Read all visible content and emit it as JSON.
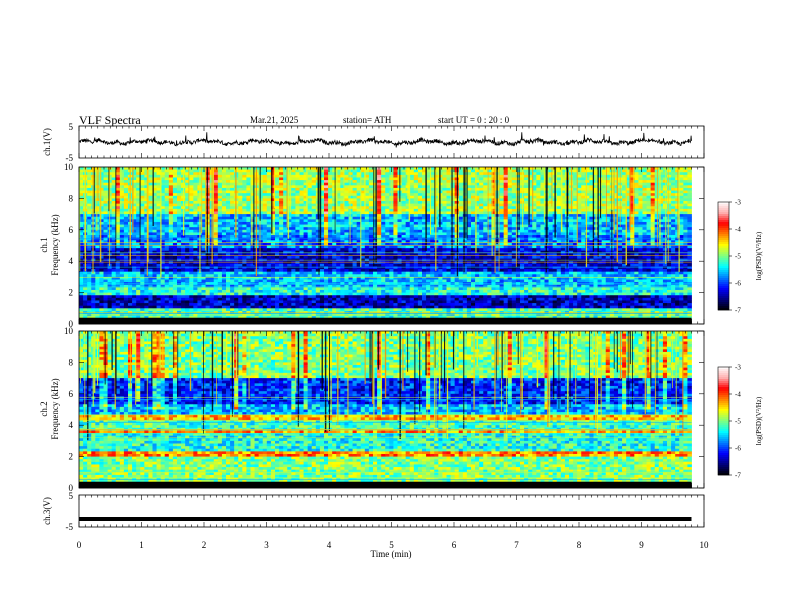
{
  "header": {
    "title": "VLF  Spectra",
    "date": "Mar.21, 2025",
    "station": "station= ATH",
    "start": "start  UT  =    0  : 20 : 0"
  },
  "chart_data": [
    {
      "type": "line",
      "panel": "ch1-waveform",
      "ylabel": "ch.1(V)",
      "yticks": [
        "5",
        "-5"
      ],
      "ylim": [
        -5,
        5
      ],
      "xlim": [
        0,
        10
      ],
      "note_series": "noisy waveform around ~0 V with amplitude ~±1 V, data from 0 to ~9.8 min"
    },
    {
      "type": "heatmap",
      "panel": "ch1-spectrogram",
      "ylabel": "ch.1\nFrequency  (kHz)",
      "ylabel_lines": [
        "ch.1",
        "Frequency  (kHz)"
      ],
      "yticks": [
        "0",
        "2",
        "4",
        "6",
        "8",
        "10"
      ],
      "ylim": [
        0,
        10
      ],
      "xlim": [
        0,
        10
      ],
      "colorbar": {
        "label": "log(PSD)(V²/Hz)",
        "ticks": [
          "-3",
          "-4",
          "-5",
          "-6",
          "-7"
        ],
        "range": [
          -7,
          -3
        ]
      },
      "bands_khz": [
        {
          "from": 0.0,
          "to": 0.3,
          "level": -7
        },
        {
          "from": 0.3,
          "to": 1.0,
          "level": -5.2
        },
        {
          "from": 1.0,
          "to": 1.9,
          "level": -6.4
        },
        {
          "from": 1.9,
          "to": 2.4,
          "level": -5.3
        },
        {
          "from": 2.4,
          "to": 3.3,
          "level": -5.6
        },
        {
          "from": 3.3,
          "to": 4.8,
          "level": -6.3
        },
        {
          "from": 4.8,
          "to": 5.6,
          "level": -5.8
        },
        {
          "from": 5.6,
          "to": 7.0,
          "level": -5.6
        },
        {
          "from": 7.0,
          "to": 10.0,
          "level": -4.9
        }
      ]
    },
    {
      "type": "heatmap",
      "panel": "ch2-spectrogram",
      "ylabel": "ch.2\nFrequency  (kHz)",
      "ylabel_lines": [
        "ch.2",
        "Frequency  (kHz)"
      ],
      "yticks": [
        "0",
        "2",
        "4",
        "6",
        "8",
        "10"
      ],
      "ylim": [
        0,
        10
      ],
      "xlim": [
        0,
        10
      ],
      "colorbar": {
        "label": "log(PSD)(V²/Hz)",
        "ticks": [
          "-3",
          "-4",
          "-5",
          "-6",
          "-7"
        ],
        "range": [
          -7,
          -3
        ]
      },
      "bands_khz": [
        {
          "from": 0.0,
          "to": 0.3,
          "level": -7
        },
        {
          "from": 0.3,
          "to": 2.0,
          "level": -5.0
        },
        {
          "from": 2.0,
          "to": 2.3,
          "level": -4.2
        },
        {
          "from": 2.3,
          "to": 3.5,
          "level": -5.3
        },
        {
          "from": 3.5,
          "to": 3.7,
          "level": -4.3
        },
        {
          "from": 3.7,
          "to": 4.4,
          "level": -5.2
        },
        {
          "from": 4.4,
          "to": 4.6,
          "level": -4.4
        },
        {
          "from": 4.6,
          "to": 5.3,
          "level": -5.6
        },
        {
          "from": 5.3,
          "to": 7.0,
          "level": -6.1
        },
        {
          "from": 7.0,
          "to": 10.0,
          "level": -5.0
        }
      ]
    },
    {
      "type": "line",
      "panel": "ch3-waveform",
      "ylabel": "ch.3(V)",
      "yticks": [
        "5",
        "-5"
      ],
      "ylim": [
        -5,
        5
      ],
      "xlim": [
        0,
        10
      ],
      "xlabel": "Time  (min)",
      "xticks": [
        "0",
        "1",
        "2",
        "3",
        "4",
        "5",
        "6",
        "7",
        "8",
        "9",
        "10"
      ],
      "constant_value": -2.5
    }
  ],
  "colors": {
    "colormap": [
      "#000000",
      "#00007f",
      "#0000ff",
      "#0080ff",
      "#00ffff",
      "#80ff80",
      "#ffff00",
      "#ff8000",
      "#ff0000",
      "#ffb0b0",
      "#ffffff"
    ]
  }
}
